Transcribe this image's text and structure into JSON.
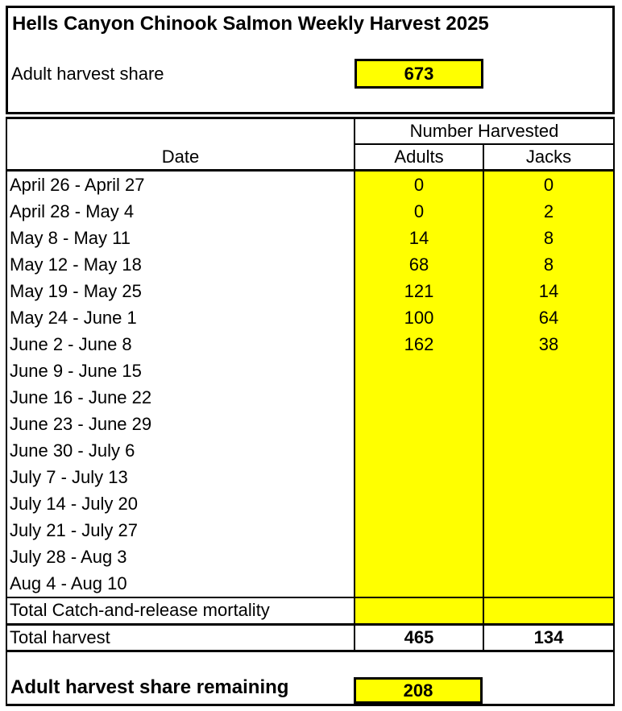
{
  "page": {
    "title": "Hells Canyon Chinook Salmon Weekly Harvest 2025"
  },
  "summary": {
    "share_label": "Adult harvest share",
    "share_value": "673"
  },
  "table": {
    "header": {
      "date": "Date",
      "group": "Number Harvested",
      "adults": "Adults",
      "jacks": "Jacks"
    },
    "rows": [
      {
        "date": "April 26 - April 27",
        "adults": "0",
        "jacks": "0"
      },
      {
        "date": "April 28 - May 4",
        "adults": "0",
        "jacks": "2"
      },
      {
        "date": "May 8 - May 11",
        "adults": "14",
        "jacks": "8"
      },
      {
        "date": "May 12 - May 18",
        "adults": "68",
        "jacks": "8"
      },
      {
        "date": "May 19 - May 25",
        "adults": "121",
        "jacks": "14"
      },
      {
        "date": "May 24 - June 1",
        "adults": "100",
        "jacks": "64"
      },
      {
        "date": "June 2 - June 8",
        "adults": "162",
        "jacks": "38"
      },
      {
        "date": "June 9 - June 15",
        "adults": "",
        "jacks": ""
      },
      {
        "date": "June 16 - June 22",
        "adults": "",
        "jacks": ""
      },
      {
        "date": "June 23 - June 29",
        "adults": "",
        "jacks": ""
      },
      {
        "date": "June 30 - July 6",
        "adults": "",
        "jacks": ""
      },
      {
        "date": "July 7 - July 13",
        "adults": "",
        "jacks": ""
      },
      {
        "date": "July 14 - July 20",
        "adults": "",
        "jacks": ""
      },
      {
        "date": "July 21 - July 27",
        "adults": "",
        "jacks": ""
      },
      {
        "date": "July 28 - Aug 3",
        "adults": "",
        "jacks": ""
      },
      {
        "date": "Aug 4 - Aug 10",
        "adults": "",
        "jacks": ""
      }
    ],
    "mortality": {
      "label": "Total Catch-and-release mortality",
      "adults": "",
      "jacks": ""
    },
    "total": {
      "label": "Total harvest",
      "adults": "465",
      "jacks": "134"
    }
  },
  "footer": {
    "remaining_label": "Adult harvest share remaining",
    "remaining_value": "208"
  },
  "colors": {
    "highlight_yellow": "#FFFF00",
    "border_black": "#000000",
    "background_white": "#FFFFFF"
  }
}
